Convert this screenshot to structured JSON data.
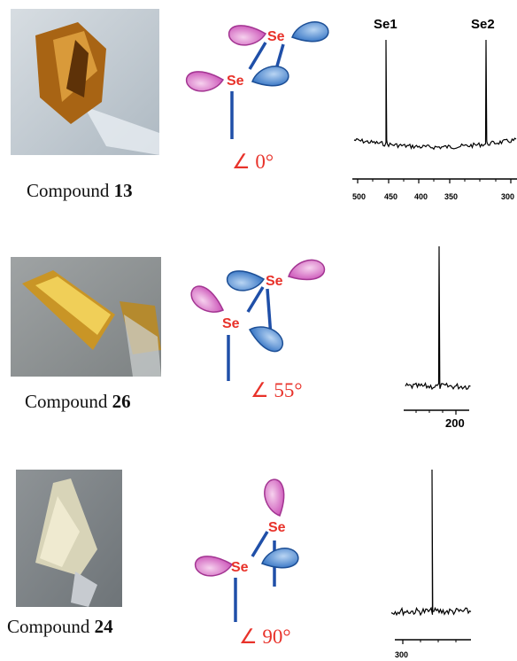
{
  "rows": [
    {
      "caption": {
        "label": "Compound",
        "number": "13"
      },
      "atoms": [
        "Se",
        "Se"
      ],
      "angle": "∠ 0°",
      "spectrum": {
        "peaks": [
          "Se1",
          "Se2"
        ],
        "ticks": [
          "500",
          "450",
          "400",
          "350",
          "300"
        ]
      }
    },
    {
      "caption": {
        "label": "Compound",
        "number": "26"
      },
      "atoms": [
        "Se",
        "Se"
      ],
      "angle": "∠ 55°",
      "spectrum": {
        "ticks": [
          "200"
        ]
      }
    },
    {
      "caption": {
        "label": "Compound",
        "number": "24"
      },
      "atoms": [
        "Se",
        "Se"
      ],
      "angle": "∠ 90°",
      "spectrum": {
        "ticks": [
          "300"
        ]
      }
    }
  ]
}
